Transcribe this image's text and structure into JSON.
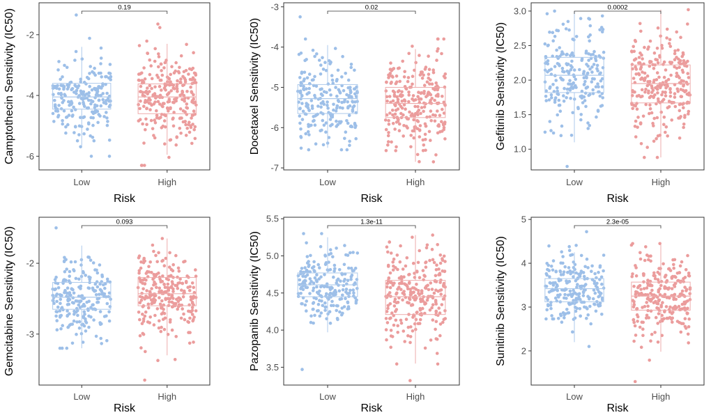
{
  "chart_data": [
    {
      "type": "box",
      "title": "",
      "xlabel": "Risk",
      "ylabel": "Camptothecin Sensitivity (IC50)",
      "categories": [
        "Low",
        "High"
      ],
      "ylim": [
        -6.45,
        -0.95
      ],
      "yticks": [
        -6,
        -4,
        -2
      ],
      "ytick_labels": [
        "-6",
        "-4",
        "-2"
      ],
      "p_value": "0.19",
      "series": [
        {
          "name": "Low",
          "color": "#9DBFE8",
          "box": {
            "q1": -4.45,
            "median": -4.05,
            "q3": -3.6,
            "whisker_low": -5.65,
            "whisker_high": -2.4
          },
          "range": [
            -6.0,
            -1.35
          ],
          "n": 220
        },
        {
          "name": "High",
          "color": "#EB9C9C",
          "box": {
            "q1": -4.6,
            "median": -4.05,
            "q3": -3.62,
            "whisker_low": -5.95,
            "whisker_high": -2.3
          },
          "range": [
            -6.3,
            -1.65
          ],
          "n": 260
        }
      ]
    },
    {
      "type": "box",
      "title": "",
      "xlabel": "Risk",
      "ylabel": "Docetaxel Sensitivity (IC50)",
      "categories": [
        "Low",
        "High"
      ],
      "ylim": [
        -7.05,
        -2.9
      ],
      "yticks": [
        -7,
        -6,
        -5,
        -4,
        -3
      ],
      "ytick_labels": [
        "-7",
        "-6",
        "-5",
        "-4",
        "-3"
      ],
      "p_value": "0.02",
      "series": [
        {
          "name": "Low",
          "color": "#9DBFE8",
          "box": {
            "q1": -5.65,
            "median": -5.28,
            "q3": -4.93,
            "whisker_low": -6.5,
            "whisker_high": -3.95
          },
          "range": [
            -6.55,
            -3.25
          ],
          "n": 220
        },
        {
          "name": "High",
          "color": "#EB9C9C",
          "box": {
            "q1": -5.75,
            "median": -5.4,
            "q3": -5.0,
            "whisker_low": -6.85,
            "whisker_high": -4.05
          },
          "range": [
            -6.85,
            -3.8
          ],
          "n": 260
        }
      ]
    },
    {
      "type": "box",
      "title": "",
      "xlabel": "Risk",
      "ylabel": "Gefitinib Sensitivity (IC50)",
      "categories": [
        "Low",
        "High"
      ],
      "ylim": [
        0.7,
        3.12
      ],
      "yticks": [
        1.0,
        1.5,
        2.0,
        2.5,
        3.0
      ],
      "ytick_labels": [
        "1.0",
        "1.5",
        "2.0",
        "2.5",
        "3.0"
      ],
      "p_value": "0.0002",
      "series": [
        {
          "name": "Low",
          "color": "#9DBFE8",
          "box": {
            "q1": 1.82,
            "median": 2.07,
            "q3": 2.33,
            "whisker_low": 1.1,
            "whisker_high": 3.0
          },
          "range": [
            0.75,
            3.0
          ],
          "n": 220
        },
        {
          "name": "High",
          "color": "#EB9C9C",
          "box": {
            "q1": 1.67,
            "median": 1.95,
            "q3": 2.22,
            "whisker_low": 0.88,
            "whisker_high": 3.02
          },
          "range": [
            0.88,
            3.02
          ],
          "n": 260
        }
      ]
    },
    {
      "type": "box",
      "title": "",
      "xlabel": "Risk",
      "ylabel": "Gemcitabine Sensitivity (IC50)",
      "categories": [
        "Low",
        "High"
      ],
      "ylim": [
        -3.72,
        -1.35
      ],
      "yticks": [
        -3,
        -2
      ],
      "ytick_labels": [
        "-3",
        "-2"
      ],
      "p_value": "0.093",
      "series": [
        {
          "name": "Low",
          "color": "#9DBFE8",
          "box": {
            "q1": -2.65,
            "median": -2.48,
            "q3": -2.27,
            "whisker_low": -3.2,
            "whisker_high": -1.75
          },
          "range": [
            -3.2,
            -1.5
          ],
          "n": 220
        },
        {
          "name": "High",
          "color": "#EB9C9C",
          "box": {
            "q1": -2.6,
            "median": -2.43,
            "q3": -2.2,
            "whisker_low": -3.3,
            "whisker_high": -1.65
          },
          "range": [
            -3.65,
            -1.65
          ],
          "n": 260
        }
      ]
    },
    {
      "type": "box",
      "title": "",
      "xlabel": "Risk",
      "ylabel": "Pazopanib Sensitivity (IC50)",
      "categories": [
        "Low",
        "High"
      ],
      "ylim": [
        3.26,
        5.52
      ],
      "yticks": [
        3.5,
        4.0,
        4.5,
        5.0,
        5.5
      ],
      "ytick_labels": [
        "3.5",
        "4.0",
        "4.5",
        "5.0",
        "5.5"
      ],
      "p_value": "1.3e-11",
      "series": [
        {
          "name": "Low",
          "color": "#9DBFE8",
          "box": {
            "q1": 4.45,
            "median": 4.61,
            "q3": 4.77,
            "whisker_low": 3.97,
            "whisker_high": 5.25
          },
          "range": [
            3.47,
            5.3
          ],
          "n": 220
        },
        {
          "name": "High",
          "color": "#EB9C9C",
          "box": {
            "q1": 4.21,
            "median": 4.45,
            "q3": 4.67,
            "whisker_low": 3.55,
            "whisker_high": 5.28
          },
          "range": [
            3.32,
            5.28
          ],
          "n": 260
        }
      ]
    },
    {
      "type": "box",
      "title": "",
      "xlabel": "Risk",
      "ylabel": "Sunitinib Sensitivity (IC50)",
      "categories": [
        "Low",
        "High"
      ],
      "ylim": [
        1.22,
        5.05
      ],
      "yticks": [
        2,
        3,
        4,
        5
      ],
      "ytick_labels": [
        "2",
        "3",
        "4",
        "5"
      ],
      "p_value": "2.3e-05",
      "series": [
        {
          "name": "Low",
          "color": "#9DBFE8",
          "box": {
            "q1": 3.12,
            "median": 3.42,
            "q3": 3.65,
            "whisker_low": 2.2,
            "whisker_high": 4.25
          },
          "range": [
            2.1,
            4.72
          ],
          "n": 220
        },
        {
          "name": "High",
          "color": "#EB9C9C",
          "box": {
            "q1": 2.93,
            "median": 3.25,
            "q3": 3.57,
            "whisker_low": 1.98,
            "whisker_high": 4.45
          },
          "range": [
            1.3,
            4.45
          ],
          "n": 260
        }
      ]
    }
  ]
}
